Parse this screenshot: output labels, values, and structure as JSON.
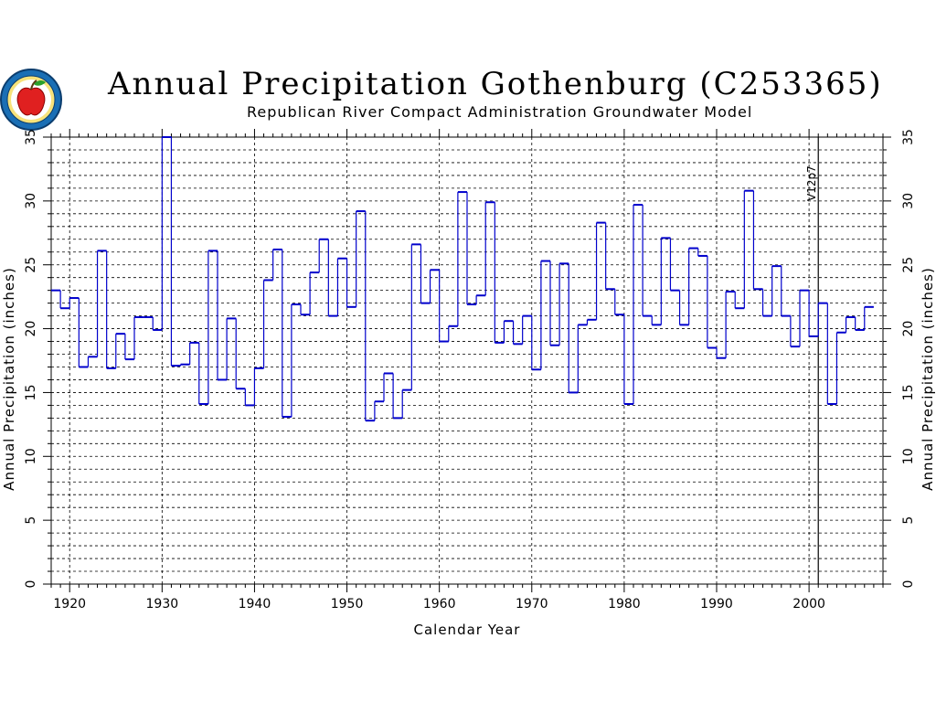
{
  "chart_data": {
    "type": "line",
    "step": true,
    "title": "Annual Precipitation Gothenburg (C253365)",
    "subtitle": "Republican River Compact Administration Groundwater Model",
    "xlabel": "Calendar Year",
    "ylabel": "Annual Precipitation (inches)",
    "xlim": [
      1918,
      2008
    ],
    "ylim": [
      0,
      35
    ],
    "x_ticks": [
      1920,
      1930,
      1940,
      1950,
      1960,
      1970,
      1980,
      1990,
      2000
    ],
    "y_ticks": [
      0,
      5,
      10,
      15,
      20,
      25,
      30,
      35
    ],
    "grid": true,
    "annotation": {
      "text": "V12p7",
      "x": 2001
    },
    "series_color": "#0000cc",
    "x": [
      1918,
      1919,
      1920,
      1921,
      1922,
      1923,
      1924,
      1925,
      1926,
      1927,
      1928,
      1929,
      1930,
      1931,
      1932,
      1933,
      1934,
      1935,
      1936,
      1937,
      1938,
      1939,
      1940,
      1941,
      1942,
      1943,
      1944,
      1945,
      1946,
      1947,
      1948,
      1949,
      1950,
      1951,
      1952,
      1953,
      1954,
      1955,
      1956,
      1957,
      1958,
      1959,
      1960,
      1961,
      1962,
      1963,
      1964,
      1965,
      1966,
      1967,
      1968,
      1969,
      1970,
      1971,
      1972,
      1973,
      1974,
      1975,
      1976,
      1977,
      1978,
      1979,
      1980,
      1981,
      1982,
      1983,
      1984,
      1985,
      1986,
      1987,
      1988,
      1989,
      1990,
      1991,
      1992,
      1993,
      1994,
      1995,
      1996,
      1997,
      1998,
      1999,
      2000,
      2001,
      2002,
      2003,
      2004,
      2005,
      2006
    ],
    "y": [
      23.0,
      21.6,
      22.4,
      17.0,
      17.8,
      26.1,
      16.9,
      19.6,
      17.6,
      20.9,
      20.9,
      19.9,
      35.0,
      17.1,
      17.2,
      18.9,
      14.1,
      26.1,
      16.0,
      20.8,
      15.3,
      14.0,
      16.9,
      23.8,
      26.2,
      13.1,
      21.9,
      21.1,
      24.4,
      27.0,
      21.0,
      25.5,
      21.7,
      29.2,
      12.8,
      14.3,
      16.5,
      13.0,
      15.2,
      26.6,
      22.0,
      24.6,
      19.0,
      20.2,
      30.7,
      21.9,
      22.6,
      29.9,
      18.9,
      20.6,
      18.8,
      21.0,
      16.8,
      25.3,
      18.7,
      25.1,
      15.0,
      20.3,
      20.7,
      28.3,
      23.1,
      21.1,
      14.1,
      29.7,
      21.0,
      20.3,
      27.1,
      23.0,
      20.3,
      26.3,
      25.7,
      18.5,
      17.7,
      22.9,
      21.6,
      30.8,
      23.1,
      21.0,
      24.9,
      21.0,
      18.6,
      23.0,
      19.4,
      22.0,
      14.1,
      19.7,
      20.9,
      19.9,
      21.7
    ]
  },
  "logo_alt": "apple-seal-logo"
}
